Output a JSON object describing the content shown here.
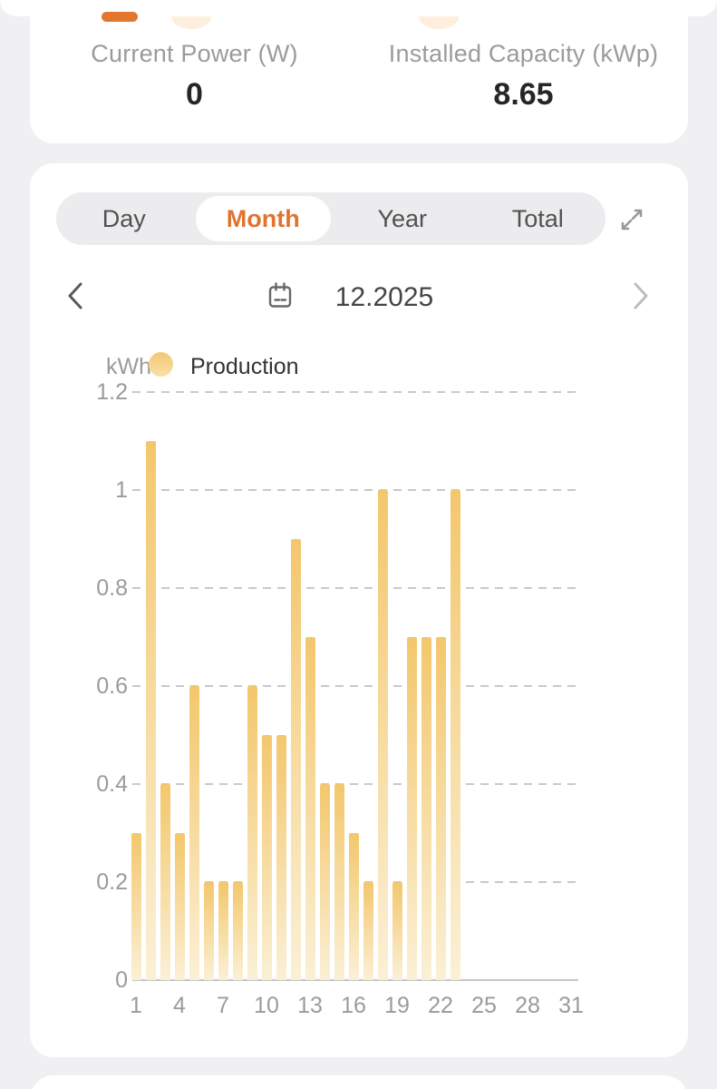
{
  "colors": {
    "page_bg": "#f0f0f2",
    "accent_orange": "#e2772e",
    "active_tab_text": "#de7430",
    "icon_blob_peach": "#fdeedd",
    "bar_top": "#f3c76c",
    "bar_bottom": "#fbf0d6",
    "legend_marker_top": "#f4c873",
    "legend_marker_bottom": "#f9e0a8"
  },
  "overview": {
    "stats": [
      {
        "label": "Current Power (W)",
        "value": "0"
      },
      {
        "label": "Installed Capacity (kWp)",
        "value": "8.65"
      }
    ]
  },
  "tabs": {
    "items": [
      "Day",
      "Month",
      "Year",
      "Total"
    ],
    "active": "Month"
  },
  "icons": {
    "expand": "expand-arrows-icon",
    "prev": "chevron-left-icon",
    "next": "chevron-right-icon",
    "calendar": "calendar-icon",
    "legend_marker": "production-circle-marker"
  },
  "date_nav": {
    "value": "12.2025"
  },
  "chart_data": {
    "type": "bar",
    "title": "",
    "unit_label": "kWh",
    "legend": [
      "Production"
    ],
    "legend_position": "top-left",
    "x": [
      1,
      2,
      3,
      4,
      5,
      6,
      7,
      8,
      9,
      10,
      11,
      12,
      13,
      14,
      15,
      16,
      17,
      18,
      19,
      20,
      21,
      22,
      23,
      24,
      25,
      26,
      27,
      28,
      29,
      30,
      31
    ],
    "values": [
      0.3,
      1.1,
      0.4,
      0.3,
      0.6,
      0.2,
      0.2,
      0.2,
      0.6,
      0.5,
      0.5,
      0.9,
      0.7,
      0.4,
      0.4,
      0.3,
      0.2,
      1.0,
      0.2,
      0.7,
      0.7,
      0.7,
      1.0,
      0,
      0,
      0,
      0,
      0,
      0,
      0,
      0
    ],
    "xlabel": "",
    "ylabel": "kWh",
    "ylim": [
      0,
      1.2
    ],
    "yticks": [
      0,
      0.2,
      0.4,
      0.6,
      0.8,
      1,
      1.2
    ],
    "xticks": [
      1,
      4,
      7,
      10,
      13,
      16,
      19,
      22,
      25,
      28,
      31
    ],
    "grid": "dashed-horizontal"
  }
}
